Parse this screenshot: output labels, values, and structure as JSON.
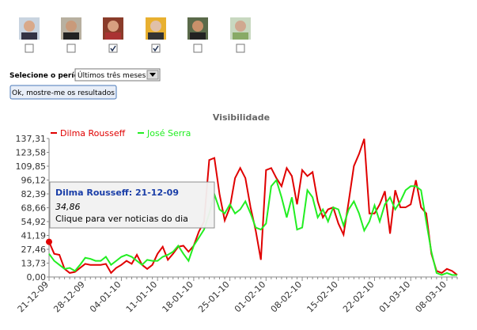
{
  "checkboxes": [
    false,
    false,
    true,
    true,
    false,
    false
  ],
  "period_label": "Selecione o período:",
  "period_value": "Últimos três meses",
  "button": "Ok, mostre-me os resultados",
  "chart_data": {
    "type": "line",
    "title": "Visibilidade",
    "categories": [
      "21-12-09",
      null,
      null,
      null,
      null,
      null,
      null,
      "28-12-09",
      null,
      null,
      null,
      null,
      null,
      null,
      "04-01-10",
      null,
      null,
      null,
      null,
      null,
      null,
      "11-01-10",
      null,
      null,
      null,
      null,
      null,
      null,
      "18-01-10",
      null,
      null,
      null,
      null,
      null,
      null,
      "25-01-10",
      null,
      null,
      null,
      null,
      null,
      null,
      "01-02-10",
      null,
      null,
      null,
      null,
      null,
      null,
      "08-02-10",
      null,
      null,
      null,
      null,
      null,
      null,
      "15-02-10",
      null,
      null,
      null,
      null,
      null,
      null,
      "22-02-10",
      null,
      null,
      null,
      null,
      null,
      null,
      "01-03-10",
      null,
      null,
      null,
      null,
      null,
      null,
      "08-03-10",
      null,
      null
    ],
    "series": [
      {
        "name": "Dilma Rousseff",
        "color": "#e00000",
        "values": [
          34.86,
          23,
          22,
          8,
          4,
          5,
          9,
          13,
          12,
          12,
          12,
          13,
          4,
          9,
          12,
          16,
          13,
          22,
          12,
          8,
          12,
          23,
          30,
          17,
          23,
          30,
          31,
          25,
          31,
          45,
          55,
          116,
          118,
          82,
          56,
          69,
          98,
          108,
          98,
          69,
          46,
          17,
          106,
          108,
          98,
          90,
          108,
          100,
          72,
          106,
          100,
          104,
          75,
          59,
          67,
          69,
          53,
          42,
          75,
          110,
          122,
          137,
          63,
          63,
          72,
          85,
          43,
          86,
          69,
          69,
          72,
          96,
          69,
          63,
          23,
          6,
          4,
          8,
          6,
          2
        ]
      },
      {
        "name": "José Serra",
        "color": "#22ee22",
        "values": [
          23,
          16,
          12,
          8,
          9,
          6,
          12,
          19,
          18,
          16,
          16,
          20,
          12,
          16,
          20,
          22,
          20,
          16,
          12,
          17,
          16,
          16,
          20,
          22,
          25,
          31,
          23,
          16,
          31,
          39,
          47,
          63,
          82,
          67,
          63,
          72,
          63,
          67,
          75,
          63,
          49,
          47,
          53,
          90,
          96,
          79,
          59,
          79,
          47,
          49,
          86,
          79,
          59,
          67,
          55,
          69,
          67,
          51,
          67,
          75,
          63,
          46,
          55,
          71,
          55,
          72,
          79,
          67,
          75,
          86,
          90,
          90,
          86,
          55,
          25,
          4,
          2,
          4,
          2,
          2
        ]
      }
    ],
    "ylim": [
      0,
      137.31
    ],
    "yticks": [
      {
        "value": 0,
        "label": "0,00"
      },
      {
        "value": 13.73,
        "label": "13,73"
      },
      {
        "value": 27.46,
        "label": "27,46"
      },
      {
        "value": 41.19,
        "label": "41,19"
      },
      {
        "value": 54.92,
        "label": "54,92"
      },
      {
        "value": 68.66,
        "label": "68,66"
      },
      {
        "value": 82.39,
        "label": "82,39"
      },
      {
        "value": 96.12,
        "label": "96,12"
      },
      {
        "value": 109.85,
        "label": "109,85"
      },
      {
        "value": 123.58,
        "label": "123,58"
      },
      {
        "value": 137.31,
        "label": "137,31"
      }
    ],
    "legend": "top-left",
    "tooltip": {
      "title": "Dilma Rousseff: 21-12-09",
      "value": 34.86,
      "value_label": "34,86",
      "text": "Clique para ver noticias do dia"
    }
  }
}
